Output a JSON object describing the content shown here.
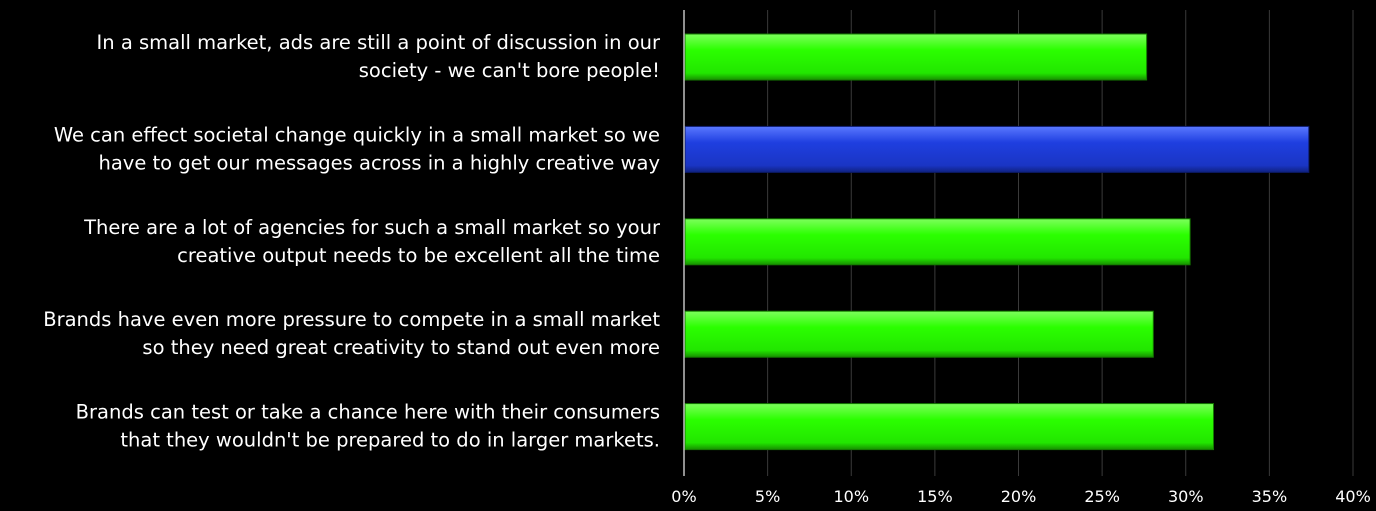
{
  "chart_data": {
    "type": "bar",
    "orientation": "horizontal",
    "categories": [
      [
        "In a small market, ads are still a point of discussion in our",
        "society - we can't bore people!"
      ],
      [
        "We can effect societal change quickly in a small market so we",
        "have to get our messages across in a highly creative way"
      ],
      [
        "There are a lot of agencies for such a small market so your",
        "creative output needs to be excellent all the time"
      ],
      [
        "Brands have even more pressure to compete in a small market",
        "so they need great creativity to stand out even more"
      ],
      [
        "Brands can test or take a chance here with their consumers",
        "that they wouldn't be prepared to do in larger markets."
      ]
    ],
    "values": [
      27.6,
      37.3,
      30.2,
      28.0,
      31.6
    ],
    "highlight_index": 1,
    "xlim": [
      0,
      40
    ],
    "x_ticks": [
      "0%",
      "5%",
      "10%",
      "15%",
      "20%",
      "25%",
      "30%",
      "35%",
      "40%"
    ],
    "grid": true,
    "legend": false,
    "title": "",
    "xlabel": "",
    "ylabel": "",
    "colors": {
      "background": "#000000",
      "bar": "#2bff00",
      "bar_highlight": "#1f3fe0",
      "grid": "#3a3a3a",
      "axis": "#bfbfbf",
      "text": "#ffffff"
    }
  }
}
